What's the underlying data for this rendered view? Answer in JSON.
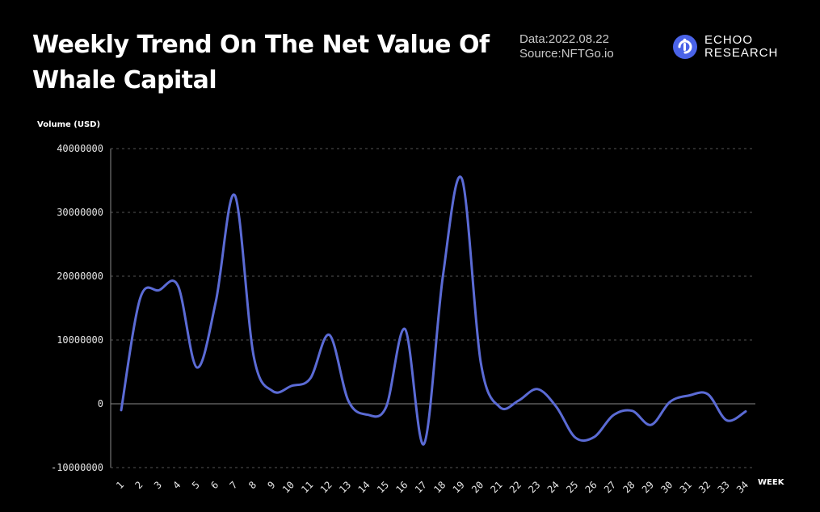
{
  "header": {
    "title": "Weekly Trend On The Net Value Of Whale Capital",
    "date": "Data:2022.08.22",
    "source": "Source:NFTGo.io",
    "brand_line1": "ECHOO",
    "brand_line2": "RESEARCH"
  },
  "colors": {
    "line": "#5b6bd5",
    "brand": "#4a63e8",
    "background": "#000000",
    "grid": "#555555"
  },
  "chart_data": {
    "type": "line",
    "ylabel": "Volume  (USD)",
    "xlabel": "WEEK",
    "ylim": [
      -10000000,
      40000000
    ],
    "yticks": [
      40000000,
      30000000,
      20000000,
      10000000,
      0,
      -10000000
    ],
    "ytick_labels": [
      "40000000",
      "30000000",
      "20000000",
      "10000000",
      "0",
      "-10000000"
    ],
    "grid": "horizontal dashed",
    "x": [
      "1",
      "2",
      "3",
      "4",
      "5",
      "6",
      "7",
      "8",
      "9",
      "10",
      "11",
      "12",
      "13",
      "14",
      "15",
      "16",
      "17",
      "18",
      "19",
      "20",
      "21",
      "22",
      "23",
      "24",
      "25",
      "26",
      "27",
      "28",
      "29",
      "30",
      "31",
      "32",
      "33",
      "34"
    ],
    "series": [
      {
        "values": [
          -1000000,
          16500000,
          17800000,
          18500000,
          5700000,
          16000000,
          32700000,
          7500000,
          2000000,
          2800000,
          4000000,
          10800000,
          500000,
          -1700000,
          -500000,
          11700000,
          -6300000,
          20000000,
          35300000,
          6500000,
          -500000,
          500000,
          2300000,
          -500000,
          -5300000,
          -5200000,
          -1800000,
          -1100000,
          -3300000,
          300000,
          1300000,
          1500000,
          -2600000,
          -1200000
        ]
      }
    ]
  }
}
